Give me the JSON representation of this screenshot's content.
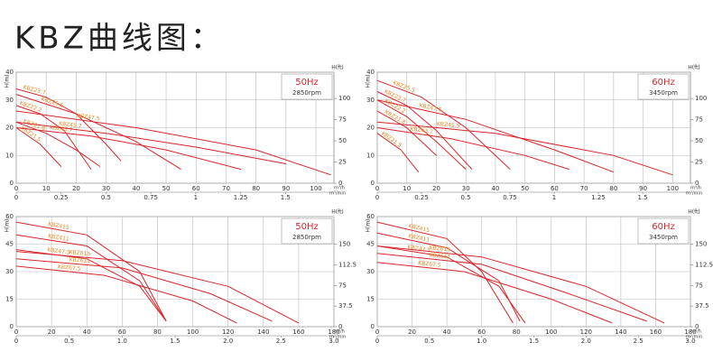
{
  "header": {
    "title": "KBZ曲线图："
  },
  "chart_data": [
    {
      "type": "line",
      "title": "50Hz",
      "subtitle": "2850rpm",
      "y_label": "H(m)",
      "y2_label": "H(ft)",
      "x_label": "m³/h",
      "x2_label": "m³/min",
      "xlim": [
        0,
        106
      ],
      "xticks": [
        0,
        10,
        20,
        30,
        40,
        50,
        60,
        70,
        80,
        90,
        100
      ],
      "x2lim": [
        0,
        1.77
      ],
      "x2ticks": [
        0,
        0.25,
        0.5,
        0.75,
        1,
        1.25,
        1.5
      ],
      "ylim": [
        0,
        40
      ],
      "yticks": [
        0,
        10,
        20,
        30,
        40
      ],
      "y2lim": [
        0,
        131
      ],
      "y2ticks": [
        0,
        25,
        50,
        75,
        100
      ],
      "grid": true,
      "color": "#d7262b",
      "label_color": "#e8871e",
      "series": [
        {
          "name": "KBZ23.7",
          "x": [
            0,
            10,
            20,
            30,
            35
          ],
          "values": [
            34,
            31,
            25,
            14,
            8
          ]
        },
        {
          "name": "KBZ22.2",
          "x": [
            0,
            8,
            16,
            25
          ],
          "values": [
            28,
            25,
            19,
            5
          ]
        },
        {
          "name": "KBZ21.8",
          "x": [
            0,
            10,
            20,
            28
          ],
          "values": [
            22,
            18,
            12,
            6
          ]
        },
        {
          "name": "KBZ21.5",
          "x": [
            0,
            8,
            15
          ],
          "values": [
            20,
            14,
            6
          ]
        },
        {
          "name": "KBZ25.5",
          "x": [
            0,
            20,
            40,
            55
          ],
          "values": [
            32,
            25,
            15,
            5
          ]
        },
        {
          "name": "KBZ43.7",
          "x": [
            0,
            25,
            50,
            75
          ],
          "values": [
            20,
            17,
            12,
            5
          ]
        },
        {
          "name": "KBZ45.7",
          "x": [
            0,
            30,
            60,
            90
          ],
          "values": [
            22,
            18,
            13,
            7
          ]
        },
        {
          "name": "KBZ47.5",
          "x": [
            0,
            40,
            80,
            105
          ],
          "values": [
            26,
            20,
            12,
            3
          ]
        }
      ]
    },
    {
      "type": "line",
      "title": "60Hz",
      "subtitle": "3450rpm",
      "y_label": "H(m)",
      "y2_label": "H(ft)",
      "x_label": "m³/h",
      "x2_label": "m³/min",
      "xlim": [
        0,
        106
      ],
      "xticks": [
        0,
        10,
        20,
        30,
        40,
        50,
        60,
        70,
        80,
        90,
        100
      ],
      "x2lim": [
        0,
        1.77
      ],
      "x2ticks": [
        0,
        0.25,
        0.5,
        0.75,
        1,
        1.25,
        1.5
      ],
      "ylim": [
        0,
        40
      ],
      "yticks": [
        0,
        10,
        20,
        30,
        40
      ],
      "y2lim": [
        0,
        131
      ],
      "y2ticks": [
        0,
        25,
        50,
        75,
        100
      ],
      "grid": true,
      "color": "#d7262b",
      "label_color": "#e8871e",
      "series": [
        {
          "name": "KBZ25.5",
          "x": [
            0,
            15,
            30,
            45
          ],
          "values": [
            37,
            31,
            20,
            5
          ]
        },
        {
          "name": "KBZ23.7",
          "x": [
            0,
            10,
            20,
            32
          ],
          "values": [
            33,
            28,
            19,
            5
          ]
        },
        {
          "name": "KBZ22.2",
          "x": [
            0,
            10,
            20,
            30
          ],
          "values": [
            30,
            24,
            15,
            5
          ]
        },
        {
          "name": "KBZ21.8",
          "x": [
            0,
            10,
            20
          ],
          "values": [
            26,
            20,
            10
          ]
        },
        {
          "name": "KBZ21.5",
          "x": [
            0,
            8,
            14
          ],
          "values": [
            18,
            12,
            4
          ]
        },
        {
          "name": "KBZ47.5",
          "x": [
            0,
            30,
            60,
            80
          ],
          "values": [
            30,
            23,
            12,
            4
          ]
        },
        {
          "name": "KBZ45.5",
          "x": [
            0,
            40,
            80,
            100
          ],
          "values": [
            22,
            18,
            10,
            3
          ]
        },
        {
          "name": "KBZ43.7",
          "x": [
            0,
            25,
            50,
            65
          ],
          "values": [
            20,
            16,
            10,
            5
          ]
        }
      ]
    },
    {
      "type": "line",
      "title": "50Hz",
      "subtitle": "2850rpm",
      "y_label": "H(m)",
      "y2_label": "H(ft)",
      "x_label": "m³/h",
      "x2_label": "m³/min",
      "xlim": [
        0,
        180
      ],
      "xticks": [
        0,
        20,
        40,
        60,
        80,
        100,
        120,
        140,
        160,
        180
      ],
      "x2lim": [
        0,
        3
      ],
      "x2ticks": [
        0,
        0.5,
        {
          "value": 1,
          "label": "1.0"
        },
        1.5,
        {
          "value": 2,
          "label": "2.0"
        },
        2.5,
        {
          "value": 3,
          "label": "3.0"
        }
      ],
      "ylim": [
        0,
        60
      ],
      "yticks": [
        0,
        15,
        30,
        45,
        60
      ],
      "y2lim": [
        0,
        200
      ],
      "y2ticks": [
        0,
        37.5,
        75,
        112.5,
        150
      ],
      "grid": true,
      "color": "#d7262b",
      "label_color": "#e8871e",
      "series": [
        {
          "name": "KBZ415",
          "x": [
            0,
            40,
            70,
            85
          ],
          "values": [
            57,
            50,
            30,
            3
          ]
        },
        {
          "name": "KBZ411",
          "x": [
            0,
            40,
            70,
            85
          ],
          "values": [
            50,
            44,
            25,
            3
          ]
        },
        {
          "name": "KBZ47.5",
          "x": [
            0,
            40,
            70,
            85
          ],
          "values": [
            42,
            37,
            22,
            3
          ]
        },
        {
          "name": "KBZ615",
          "x": [
            0,
            60,
            120,
            160
          ],
          "values": [
            41,
            36,
            22,
            2
          ]
        },
        {
          "name": "KBZ611",
          "x": [
            0,
            60,
            110,
            145
          ],
          "values": [
            37,
            32,
            18,
            3
          ]
        },
        {
          "name": "KBZ67.5",
          "x": [
            0,
            50,
            100,
            125
          ],
          "values": [
            33,
            28,
            14,
            2
          ]
        }
      ]
    },
    {
      "type": "line",
      "title": "60Hz",
      "subtitle": "3450rpm",
      "y_label": "H(m)",
      "y2_label": "H(ft)",
      "x_label": "m³/h",
      "x2_label": "m³/min",
      "xlim": [
        0,
        180
      ],
      "xticks": [
        0,
        20,
        40,
        60,
        80,
        100,
        120,
        140,
        160,
        180
      ],
      "x2lim": [
        0,
        3
      ],
      "x2ticks": [
        0,
        0.5,
        {
          "value": 1,
          "label": "1.0"
        },
        1.5,
        {
          "value": 2,
          "label": "2.0"
        },
        2.5,
        {
          "value": 3,
          "label": "3.0"
        }
      ],
      "ylim": [
        0,
        60
      ],
      "yticks": [
        0,
        15,
        30,
        45,
        60
      ],
      "y2lim": [
        0,
        200
      ],
      "y2ticks": [
        0,
        37.5,
        75,
        112.5,
        150
      ],
      "grid": true,
      "color": "#d7262b",
      "label_color": "#e8871e",
      "series": [
        {
          "name": "KBZ415",
          "x": [
            0,
            40,
            60,
            78
          ],
          "values": [
            57,
            48,
            30,
            2
          ]
        },
        {
          "name": "KBZ411",
          "x": [
            0,
            40,
            70,
            82
          ],
          "values": [
            51,
            43,
            25,
            3
          ]
        },
        {
          "name": "KBZ47.5",
          "x": [
            0,
            40,
            70,
            85
          ],
          "values": [
            44,
            38,
            22,
            2
          ]
        },
        {
          "name": "KBZ615",
          "x": [
            0,
            60,
            120,
            165
          ],
          "values": [
            44,
            38,
            22,
            2
          ]
        },
        {
          "name": "KBZ611",
          "x": [
            0,
            60,
            110,
            155
          ],
          "values": [
            40,
            34,
            18,
            3
          ]
        },
        {
          "name": "KBZ67.5",
          "x": [
            0,
            50,
            100,
            135
          ],
          "values": [
            35,
            30,
            15,
            2
          ]
        }
      ]
    }
  ]
}
